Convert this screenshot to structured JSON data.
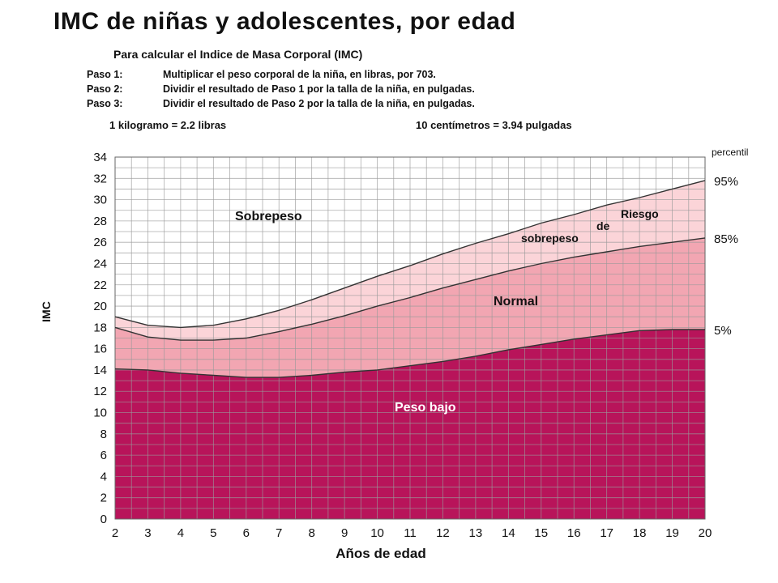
{
  "header": {
    "title": "IMC de niñas y adolescentes, por edad",
    "subtitle": "Para calcular el Indice de Masa Corporal (IMC)",
    "steps": [
      {
        "label": "Paso 1:",
        "text": "Multiplicar el peso corporal de la niña, en libras, por 703."
      },
      {
        "label": "Paso 2:",
        "text": "Dividir el resultado de Paso 1 por la talla de la niña, en pulgadas."
      },
      {
        "label": "Paso 3:",
        "text": "Dividir el resultado de Paso 2 por la talla de la niña, en pulgadas."
      }
    ],
    "conversion_weight": "1 kilogramo  =  2.2 libras",
    "conversion_length": "10 centímetros  =  3.94 pulgadas"
  },
  "colors": {
    "underweight": "#b8145a",
    "normal": "#f2a6b2",
    "risk": "#fbd4d8",
    "overweight": "#ffffff",
    "grid": "#9a9a9a",
    "curve": "#333333"
  },
  "chart_data": {
    "type": "area",
    "title": "IMC de niñas y adolescentes, por edad",
    "xlabel": "Años de edad",
    "ylabel": "IMC",
    "xlim": [
      2,
      20
    ],
    "ylim": [
      0,
      34
    ],
    "xticks": [
      2,
      3,
      4,
      5,
      6,
      7,
      8,
      9,
      10,
      11,
      12,
      13,
      14,
      15,
      16,
      17,
      18,
      19,
      20
    ],
    "yticks": [
      0,
      2,
      4,
      6,
      8,
      10,
      12,
      14,
      16,
      18,
      20,
      22,
      24,
      26,
      28,
      30,
      32,
      34
    ],
    "grid": true,
    "percentile_label": "percentil",
    "x": [
      2,
      3,
      4,
      5,
      6,
      7,
      8,
      9,
      10,
      11,
      12,
      13,
      14,
      15,
      16,
      17,
      18,
      19,
      20
    ],
    "series": [
      {
        "name": "5%",
        "values": [
          14.1,
          14.0,
          13.7,
          13.5,
          13.3,
          13.3,
          13.5,
          13.8,
          14.0,
          14.4,
          14.8,
          15.3,
          15.9,
          16.4,
          16.9,
          17.3,
          17.7,
          17.8,
          17.8
        ]
      },
      {
        "name": "85%",
        "values": [
          18.0,
          17.1,
          16.8,
          16.8,
          17.0,
          17.6,
          18.3,
          19.1,
          20.0,
          20.8,
          21.7,
          22.5,
          23.3,
          24.0,
          24.6,
          25.1,
          25.6,
          26.0,
          26.4
        ]
      },
      {
        "name": "95%",
        "values": [
          19.0,
          18.2,
          18.0,
          18.2,
          18.8,
          19.6,
          20.6,
          21.7,
          22.8,
          23.8,
          24.9,
          25.9,
          26.8,
          27.8,
          28.6,
          29.5,
          30.2,
          31.0,
          31.8
        ]
      }
    ],
    "zones": [
      "Sobrepeso",
      "Riesgo de sobrepeso",
      "Normal",
      "Peso bajo"
    ]
  }
}
